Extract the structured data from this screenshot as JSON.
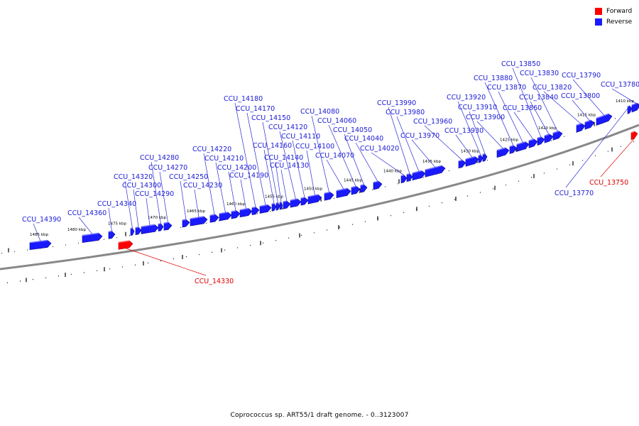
{
  "colors": {
    "forward": "#ff0000",
    "reverse": "#1a1aff",
    "label_reverse": "#1a1ad6",
    "label_forward": "#e00000",
    "backbone": "#666666"
  },
  "legend": {
    "forward_label": "Forward",
    "reverse_label": "Reverse"
  },
  "caption": "Coprococcus sp. ART55/1 draft genome. - 0..3123007",
  "scale_labels": [
    "1485 kbp",
    "1480 kbp",
    "1475 kbp",
    "1470 kbp",
    "1465 kbp",
    "1460 kbp",
    "1455 kbp",
    "1450 kbp",
    "1445 kbp",
    "1440 kbp",
    "1435 kbp",
    "1430 kbp",
    "1425 kbp",
    "1420 kbp",
    "1415 kbp",
    "1410 kbp"
  ],
  "genes": [
    {
      "name": "CCU_14390",
      "strand": "reverse"
    },
    {
      "name": "CCU_14360",
      "strand": "reverse"
    },
    {
      "name": "CCU_14340",
      "strand": "reverse"
    },
    {
      "name": "CCU_14330",
      "strand": "forward"
    },
    {
      "name": "CCU_14320",
      "strand": "reverse"
    },
    {
      "name": "CCU_14300",
      "strand": "reverse"
    },
    {
      "name": "CCU_14290",
      "strand": "reverse"
    },
    {
      "name": "CCU_14280",
      "strand": "reverse"
    },
    {
      "name": "CCU_14270",
      "strand": "reverse"
    },
    {
      "name": "CCU_14250",
      "strand": "reverse"
    },
    {
      "name": "CCU_14230",
      "strand": "reverse"
    },
    {
      "name": "CCU_14220",
      "strand": "reverse"
    },
    {
      "name": "CCU_14210",
      "strand": "reverse"
    },
    {
      "name": "CCU_14200",
      "strand": "reverse"
    },
    {
      "name": "CCU_14190",
      "strand": "reverse"
    },
    {
      "name": "CCU_14180",
      "strand": "reverse"
    },
    {
      "name": "CCU_14170",
      "strand": "reverse"
    },
    {
      "name": "CCU_14160",
      "strand": "reverse"
    },
    {
      "name": "CCU_14150",
      "strand": "reverse"
    },
    {
      "name": "CCU_14140",
      "strand": "reverse"
    },
    {
      "name": "CCU_14130",
      "strand": "reverse"
    },
    {
      "name": "CCU_14120",
      "strand": "reverse"
    },
    {
      "name": "CCU_14110",
      "strand": "reverse"
    },
    {
      "name": "CCU_14100",
      "strand": "reverse"
    },
    {
      "name": "CCU_14080",
      "strand": "reverse"
    },
    {
      "name": "CCU_14070",
      "strand": "reverse"
    },
    {
      "name": "CCU_14060",
      "strand": "reverse"
    },
    {
      "name": "CCU_14050",
      "strand": "reverse"
    },
    {
      "name": "CCU_14040",
      "strand": "reverse"
    },
    {
      "name": "CCU_14020",
      "strand": "reverse"
    },
    {
      "name": "CCU_13990",
      "strand": "reverse"
    },
    {
      "name": "CCU_13980",
      "strand": "reverse"
    },
    {
      "name": "CCU_13970",
      "strand": "reverse"
    },
    {
      "name": "CCU_13960",
      "strand": "reverse"
    },
    {
      "name": "CCU_13930",
      "strand": "reverse"
    },
    {
      "name": "CCU_13920",
      "strand": "reverse"
    },
    {
      "name": "CCU_13910",
      "strand": "reverse"
    },
    {
      "name": "CCU_13900",
      "strand": "reverse"
    },
    {
      "name": "CCU_13880",
      "strand": "reverse"
    },
    {
      "name": "CCU_13870",
      "strand": "reverse"
    },
    {
      "name": "CCU_13860",
      "strand": "reverse"
    },
    {
      "name": "CCU_13850",
      "strand": "reverse"
    },
    {
      "name": "CCU_13840",
      "strand": "reverse"
    },
    {
      "name": "CCU_13830",
      "strand": "reverse"
    },
    {
      "name": "CCU_13820",
      "strand": "reverse"
    },
    {
      "name": "CCU_13800",
      "strand": "reverse"
    },
    {
      "name": "CCU_13790",
      "strand": "reverse"
    },
    {
      "name": "CCU_13780",
      "strand": "reverse"
    },
    {
      "name": "CCU_13770",
      "strand": "reverse"
    },
    {
      "name": "CCU_13750",
      "strand": "forward"
    }
  ]
}
